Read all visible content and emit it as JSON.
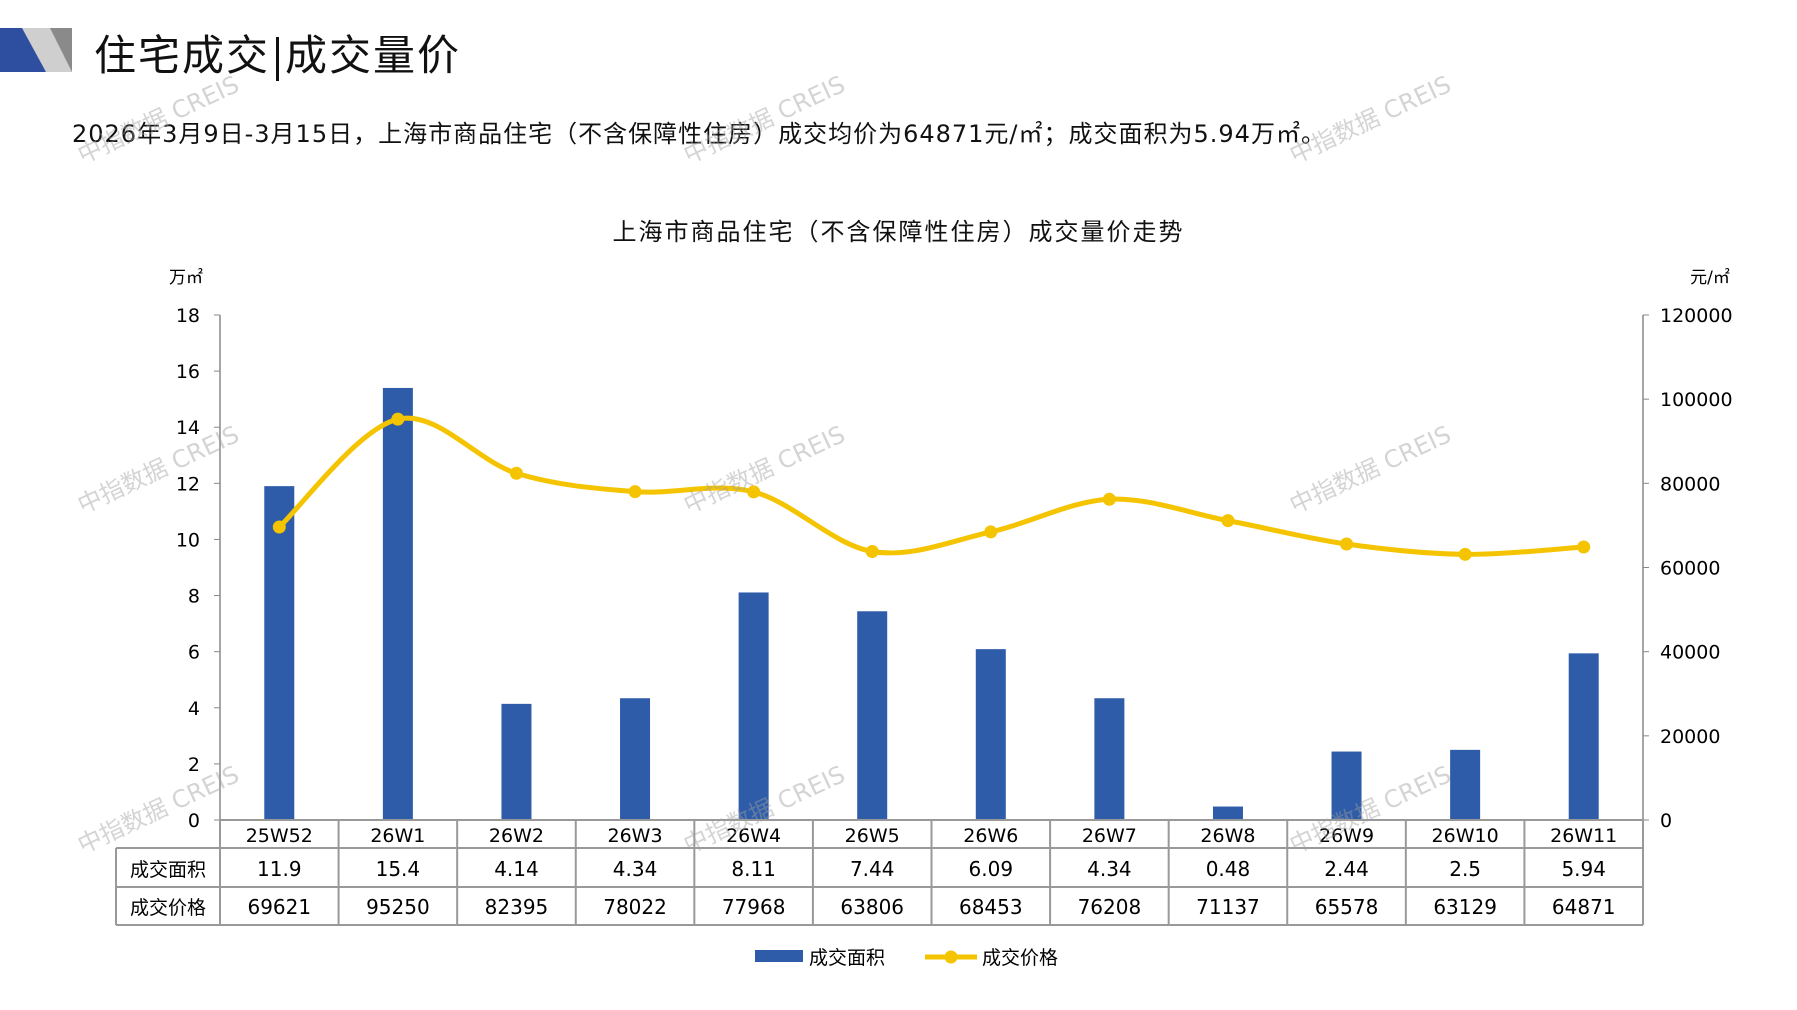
{
  "header": {
    "title_left": "住宅成交",
    "title_right": "成交量价",
    "summary": "2026年3月9日-3月15日，上海市商品住宅（不含保障性住房）成交均价为64871元/㎡；成交面积为5.94万㎡。"
  },
  "watermark": "中指数据 CREIS",
  "colors": {
    "bar": "#2E5CA8",
    "line": "#F5C400",
    "grid": "#999999"
  },
  "chart_data": {
    "type": "bar+line",
    "title": "上海市商品住宅（不含保障性住房）成交量价走势",
    "categories": [
      "25W52",
      "26W1",
      "26W2",
      "26W3",
      "26W4",
      "26W5",
      "26W6",
      "26W7",
      "26W8",
      "26W9",
      "26W10",
      "26W11"
    ],
    "series": [
      {
        "name": "成交面积",
        "type": "bar",
        "axis": "left",
        "values": [
          11.9,
          15.4,
          4.14,
          4.34,
          8.11,
          7.44,
          6.09,
          4.34,
          0.48,
          2.44,
          2.5,
          5.94
        ],
        "labels": [
          "11.9",
          "15.4",
          "4.14",
          "4.34",
          "8.11",
          "7.44",
          "6.09",
          "4.34",
          "0.48",
          "2.44",
          "2.5",
          "5.94"
        ]
      },
      {
        "name": "成交价格",
        "type": "line",
        "axis": "right",
        "values": [
          69621,
          95250,
          82395,
          78022,
          77968,
          63806,
          68453,
          76208,
          71137,
          65578,
          63129,
          64871
        ],
        "labels": [
          "69621",
          "95250",
          "82395",
          "78022",
          "77968",
          "63806",
          "68453",
          "76208",
          "71137",
          "65578",
          "63129",
          "64871"
        ]
      }
    ],
    "yleft": {
      "label": "万㎡",
      "range": [
        0,
        18
      ],
      "ticks": [
        "0",
        "2",
        "4",
        "6",
        "8",
        "10",
        "12",
        "14",
        "16",
        "18"
      ]
    },
    "yright": {
      "label": "元/㎡",
      "range": [
        0,
        120000
      ],
      "ticks": [
        "0",
        "20000",
        "40000",
        "60000",
        "80000",
        "100000",
        "120000"
      ]
    },
    "legend": "bottom",
    "data_table": true
  }
}
